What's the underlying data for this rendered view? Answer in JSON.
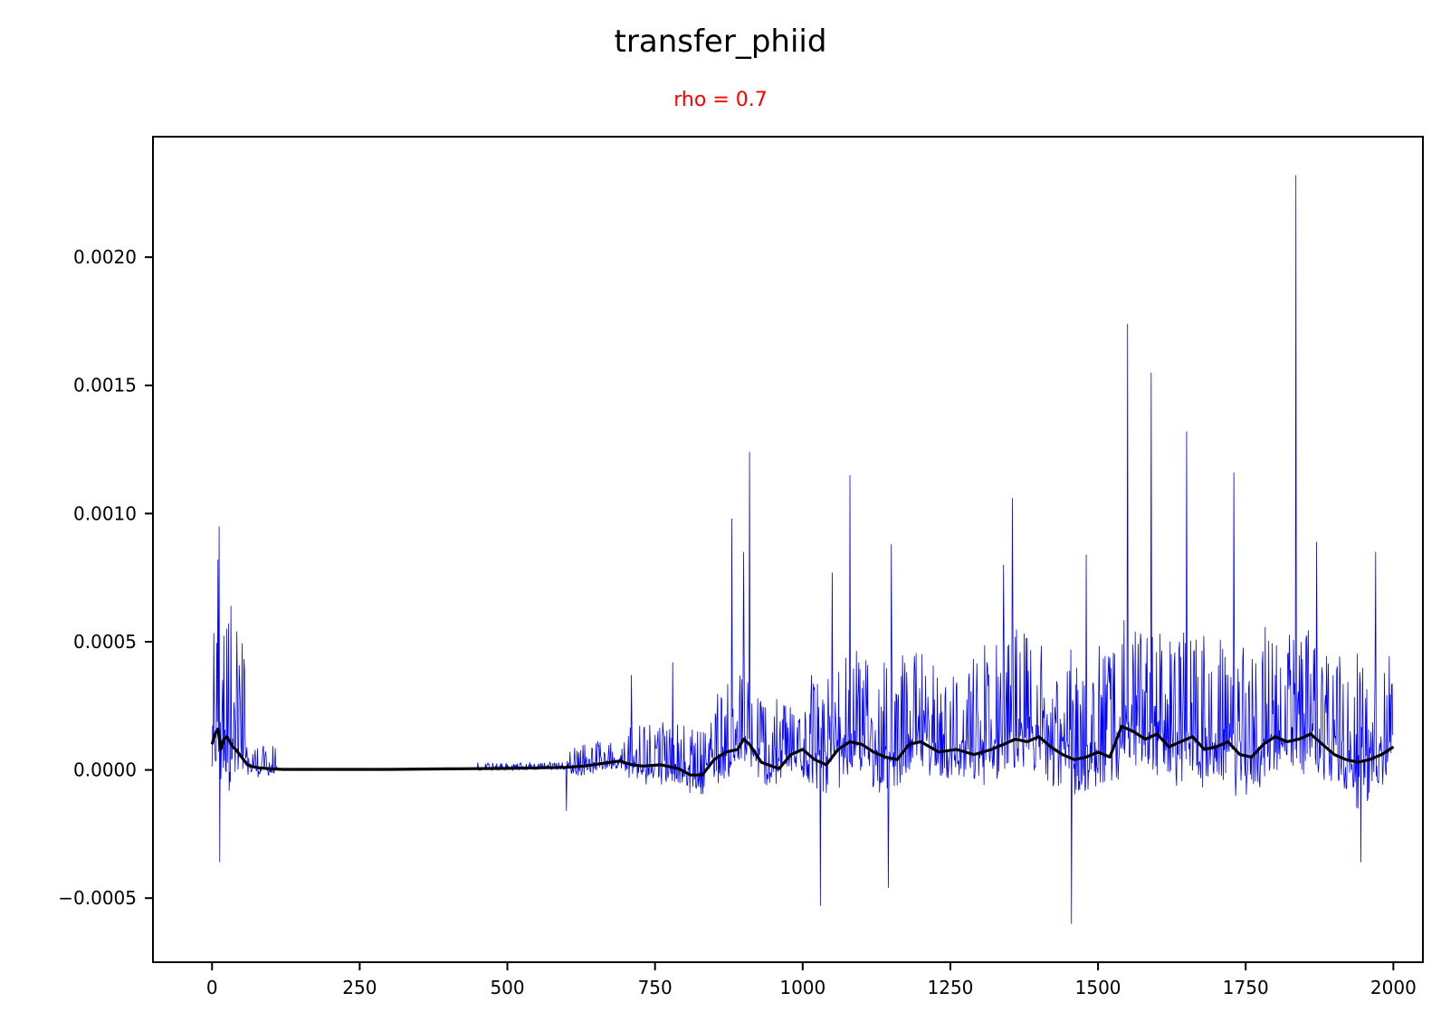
{
  "chart_data": {
    "type": "line",
    "title": "transfer_phiid",
    "subtitle": "rho = 0.7",
    "xlabel": "",
    "ylabel": "",
    "xlim": [
      -100,
      2050
    ],
    "ylim": [
      -0.00075,
      0.00247
    ],
    "x_ticks": [
      0,
      250,
      500,
      750,
      1000,
      1250,
      1500,
      1750,
      2000
    ],
    "x_tick_labels": [
      "0",
      "250",
      "500",
      "750",
      "1000",
      "1250",
      "1500",
      "1750",
      "2000"
    ],
    "y_ticks": [
      -0.0005,
      0.0,
      0.0005,
      0.001,
      0.0015,
      0.002
    ],
    "y_tick_labels": [
      "−0.0005",
      "0.0000",
      "0.0005",
      "0.0010",
      "0.0015",
      "0.0020"
    ],
    "grid": false,
    "legend": "none",
    "colors": {
      "raw": "#0000ff",
      "smoothed": "#000000",
      "subtitle": "#ff0000"
    },
    "series": [
      {
        "role": "raw",
        "n_points": 2000,
        "notable_points": [
          {
            "x": 10,
            "y": 0.00082
          },
          {
            "x": 12,
            "y": 0.00095
          },
          {
            "x": 13,
            "y": -0.00036
          },
          {
            "x": 25,
            "y": 0.00055
          },
          {
            "x": 32,
            "y": 0.00064
          },
          {
            "x": 42,
            "y": 0.00054
          },
          {
            "x": 600,
            "y": -0.00016
          },
          {
            "x": 710,
            "y": 0.00037
          },
          {
            "x": 780,
            "y": 0.00042
          },
          {
            "x": 880,
            "y": 0.00098
          },
          {
            "x": 900,
            "y": 0.00085
          },
          {
            "x": 910,
            "y": 0.00124
          },
          {
            "x": 1030,
            "y": -0.00053
          },
          {
            "x": 1050,
            "y": 0.00077
          },
          {
            "x": 1080,
            "y": 0.00115
          },
          {
            "x": 1145,
            "y": -0.00046
          },
          {
            "x": 1150,
            "y": 0.00088
          },
          {
            "x": 1340,
            "y": 0.0008
          },
          {
            "x": 1355,
            "y": 0.00106
          },
          {
            "x": 1455,
            "y": -0.0006
          },
          {
            "x": 1480,
            "y": 0.00084
          },
          {
            "x": 1550,
            "y": 0.00174
          },
          {
            "x": 1590,
            "y": 0.00155
          },
          {
            "x": 1650,
            "y": 0.00132
          },
          {
            "x": 1730,
            "y": 0.00116
          },
          {
            "x": 1835,
            "y": 0.00232
          },
          {
            "x": 1870,
            "y": 0.00089
          },
          {
            "x": 1945,
            "y": -0.00036
          },
          {
            "x": 1970,
            "y": 0.00085
          }
        ]
      },
      {
        "role": "smoothed",
        "x": [
          0,
          5,
          10,
          15,
          20,
          25,
          30,
          35,
          40,
          50,
          60,
          70,
          80,
          100,
          120,
          200,
          300,
          400,
          500,
          550,
          600,
          630,
          660,
          690,
          710,
          730,
          760,
          790,
          810,
          830,
          850,
          870,
          890,
          900,
          910,
          930,
          960,
          980,
          1000,
          1020,
          1040,
          1060,
          1080,
          1100,
          1120,
          1140,
          1160,
          1180,
          1200,
          1230,
          1260,
          1290,
          1320,
          1340,
          1360,
          1380,
          1400,
          1420,
          1440,
          1460,
          1480,
          1500,
          1520,
          1540,
          1560,
          1580,
          1600,
          1620,
          1640,
          1660,
          1680,
          1700,
          1720,
          1740,
          1760,
          1780,
          1800,
          1820,
          1840,
          1860,
          1880,
          1900,
          1920,
          1940,
          1960,
          1980,
          2000
        ],
        "y": [
          0.0001,
          0.00014,
          0.00016,
          8e-05,
          0.00012,
          0.00013,
          0.00011,
          9e-05,
          8e-05,
          5e-05,
          2e-05,
          1.2e-05,
          8e-06,
          4e-06,
          2e-06,
          2e-06,
          2e-06,
          4e-06,
          6e-06,
          8e-06,
          1e-05,
          1.5e-05,
          2.5e-05,
          3.5e-05,
          2e-05,
          1.5e-05,
          2e-05,
          5e-06,
          -2e-05,
          -2e-05,
          4e-05,
          7e-05,
          8e-05,
          0.00012,
          0.0001,
          3e-05,
          5e-06,
          6e-05,
          8e-05,
          4e-05,
          2e-05,
          8e-05,
          0.00011,
          0.0001,
          7e-05,
          5e-05,
          4e-05,
          0.0001,
          0.00011,
          7e-05,
          8e-05,
          6e-05,
          8e-05,
          0.0001,
          0.00012,
          0.00011,
          0.00013,
          9e-05,
          6e-05,
          4e-05,
          5e-05,
          7e-05,
          5e-05,
          0.00017,
          0.00015,
          0.00012,
          0.00014,
          9e-05,
          0.00011,
          0.00013,
          8e-05,
          9e-05,
          0.00011,
          6e-05,
          5e-05,
          0.0001,
          0.00013,
          0.00011,
          0.00012,
          0.00014,
          0.0001,
          6e-05,
          4e-05,
          3e-05,
          4e-05,
          6e-05,
          9e-05
        ]
      }
    ]
  }
}
